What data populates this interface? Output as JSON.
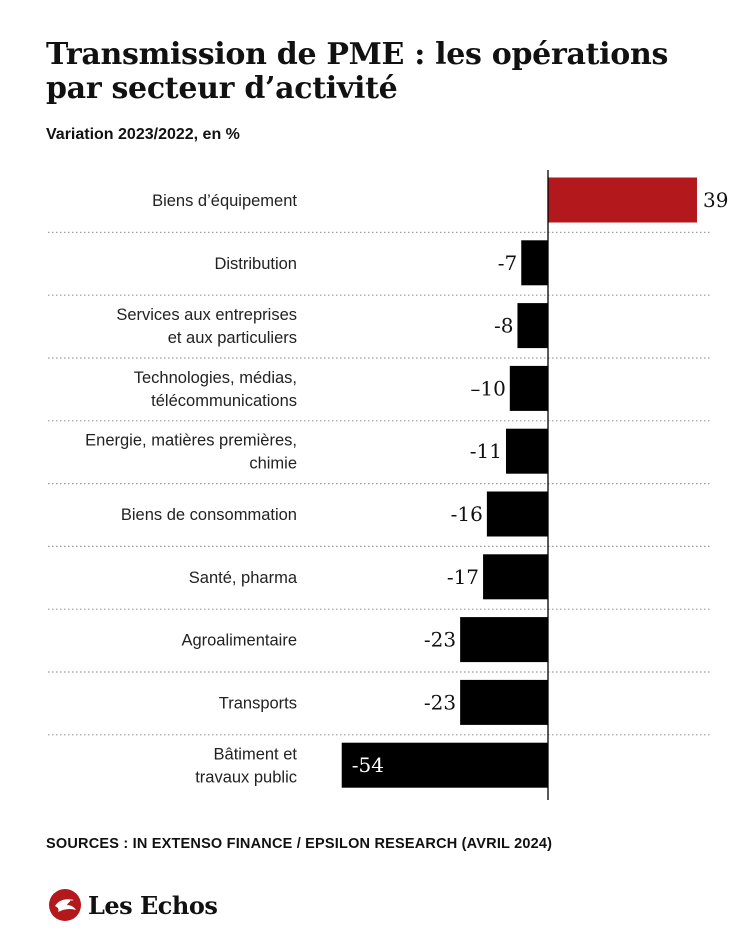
{
  "title": "Transmission de PME : les opérations par secteur d’activité",
  "subtitle": "Variation 2023/2022, en %",
  "source": "SOURCES : IN EXTENSO FINANCE / EPSILON RESEARCH (AVRIL 2024)",
  "brand": {
    "name": "Les Echos",
    "logo_icon": "les-echos-bird-icon",
    "logo_color": "#b3181c"
  },
  "colors": {
    "positive": "#b3181c",
    "negative": "#000000",
    "separator": "#9a9a9a"
  },
  "chart_data": {
    "type": "bar",
    "orientation": "horizontal",
    "categories": [
      [
        "Biens d’équipement"
      ],
      [
        "Distribution"
      ],
      [
        "Services aux entreprises",
        "et aux particuliers"
      ],
      [
        "Technologies, médias,",
        "télécommunications"
      ],
      [
        "Energie, matières premières,",
        "chimie"
      ],
      [
        "Biens de consommation"
      ],
      [
        "Santé, pharma"
      ],
      [
        "Agroalimentaire"
      ],
      [
        "Transports"
      ],
      [
        "Bâtiment et",
        "travaux public"
      ]
    ],
    "values": [
      39,
      -7,
      -8,
      -10,
      -11,
      -16,
      -17,
      -23,
      -23,
      -54
    ],
    "value_labels": [
      "39",
      "-7",
      "-8",
      "–10",
      "-11",
      "-16",
      "-17",
      "-23",
      "-23",
      "-54"
    ],
    "xlim": [
      -54,
      39
    ],
    "grid": false,
    "legend": "none"
  }
}
